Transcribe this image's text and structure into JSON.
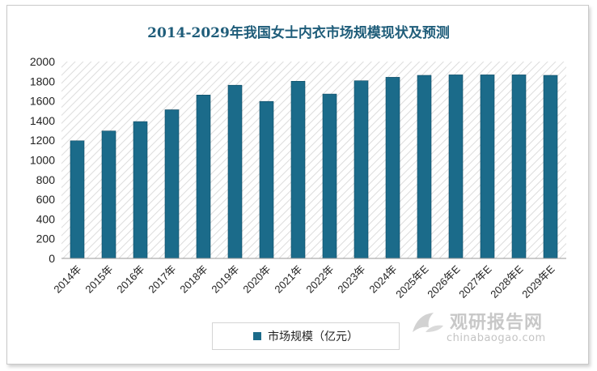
{
  "chart_data": {
    "type": "bar",
    "title": "2014-2029年我国女士内衣市场规模现状及预测",
    "categories": [
      "2014年",
      "2015年",
      "2016年",
      "2017年",
      "2018年",
      "2019年",
      "2020年",
      "2021年",
      "2022年",
      "2023年",
      "2024年",
      "2025年E",
      "2026年E",
      "2027年E",
      "2028年E",
      "2029年E"
    ],
    "series": [
      {
        "name": "市场规模（亿元）",
        "values": [
          1195,
          1295,
          1390,
          1510,
          1660,
          1760,
          1595,
          1800,
          1670,
          1805,
          1840,
          1860,
          1865,
          1865,
          1865,
          1860
        ]
      }
    ],
    "ylim": [
      0,
      2000
    ],
    "yticks": [
      "0",
      "200",
      "400",
      "600",
      "800",
      "1000",
      "1200",
      "1400",
      "1600",
      "1800",
      "2000"
    ],
    "grid": false,
    "legend_position": "bottom",
    "colors": {
      "bar": "#1b6b8a",
      "bar_edge": "#0e4a63",
      "hatch": "#d9d9d9"
    }
  },
  "watermark": {
    "cn": "观研报告网",
    "en": "chinabaogao.com"
  }
}
